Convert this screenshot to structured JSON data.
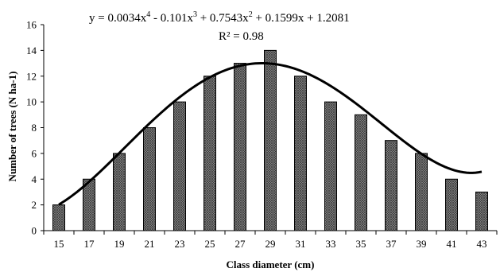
{
  "chart_data": {
    "type": "bar",
    "title": "",
    "xlabel": "Class diameter (cm)",
    "ylabel": "Number of trees (N ha-1)",
    "ylim": [
      0,
      16
    ],
    "yticks": [
      "0",
      "2",
      "4",
      "6",
      "8",
      "10",
      "12",
      "14",
      "16"
    ],
    "categories": [
      "15",
      "17",
      "19",
      "21",
      "23",
      "25",
      "27",
      "29",
      "31",
      "33",
      "35",
      "37",
      "39",
      "41",
      "43"
    ],
    "values": [
      2,
      4,
      6,
      8,
      10,
      12,
      13,
      14,
      12,
      10,
      9,
      7,
      6,
      4,
      3
    ],
    "grid": false,
    "legend": "none",
    "trendline": {
      "type": "polynomial",
      "equation_parts": {
        "prefix": "y = 0.0034x",
        "exp1": "4",
        "p2": " - 0.101x",
        "exp2": "3",
        "p3": " + 0.7543x",
        "exp3": "2",
        "p4": " + 0.1599x + 1.2081"
      },
      "r2": "R² = 0.98",
      "coefficients": [
        0.0034,
        -0.101,
        0.7543,
        0.1599,
        1.2081
      ]
    },
    "colors": {
      "bar_fill": "#9a9a9a",
      "bar_pattern": "#3a3a3a",
      "trend": "#000000"
    }
  }
}
